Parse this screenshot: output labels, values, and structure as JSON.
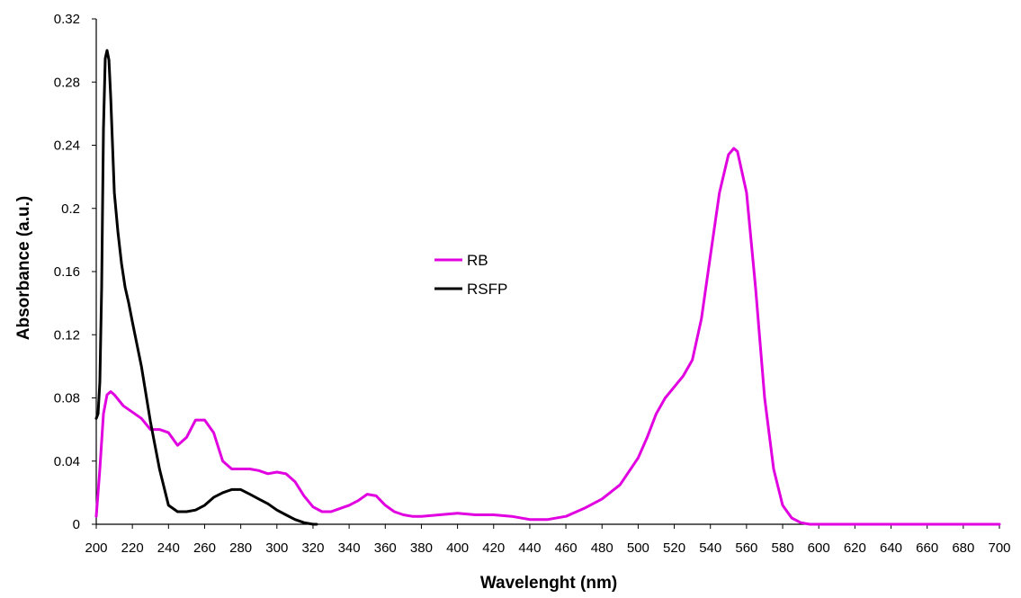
{
  "chart_data": {
    "type": "line",
    "xlabel": "Wavelenght (nm)",
    "ylabel": "Absorbance (a.u.)",
    "xlim": [
      200,
      700
    ],
    "ylim": [
      0,
      0.32
    ],
    "xticks": [
      "200",
      "220",
      "240",
      "260",
      "280",
      "300",
      "320",
      "340",
      "360",
      "380",
      "400",
      "420",
      "440",
      "460",
      "480",
      "500",
      "520",
      "540",
      "560",
      "580",
      "600",
      "620",
      "640",
      "660",
      "680",
      "700"
    ],
    "yticks": [
      "0",
      "0.04",
      "0.08",
      "0.12",
      "0.16",
      "0.2",
      "0.24",
      "0.28",
      "0.32"
    ],
    "grid": false,
    "legend_position": "center",
    "series": [
      {
        "name": "RB",
        "color": "#e000e0",
        "x": [
          200,
          202,
          204,
          206,
          208,
          210,
          215,
          220,
          225,
          230,
          235,
          240,
          245,
          250,
          255,
          260,
          265,
          270,
          275,
          280,
          285,
          290,
          295,
          300,
          305,
          310,
          315,
          320,
          325,
          330,
          335,
          340,
          345,
          350,
          355,
          360,
          365,
          370,
          375,
          380,
          390,
          400,
          410,
          420,
          430,
          440,
          450,
          460,
          470,
          480,
          490,
          500,
          505,
          510,
          515,
          520,
          525,
          530,
          535,
          540,
          545,
          550,
          553,
          555,
          560,
          565,
          570,
          575,
          580,
          585,
          590,
          595,
          600,
          605,
          610,
          650,
          700
        ],
        "y": [
          0.005,
          0.035,
          0.07,
          0.082,
          0.084,
          0.082,
          0.075,
          0.071,
          0.067,
          0.06,
          0.06,
          0.058,
          0.05,
          0.055,
          0.066,
          0.066,
          0.058,
          0.04,
          0.035,
          0.035,
          0.035,
          0.034,
          0.032,
          0.033,
          0.032,
          0.027,
          0.018,
          0.011,
          0.008,
          0.008,
          0.01,
          0.012,
          0.015,
          0.019,
          0.018,
          0.012,
          0.008,
          0.006,
          0.005,
          0.005,
          0.006,
          0.007,
          0.006,
          0.006,
          0.005,
          0.003,
          0.003,
          0.005,
          0.01,
          0.016,
          0.025,
          0.042,
          0.055,
          0.07,
          0.08,
          0.087,
          0.094,
          0.104,
          0.13,
          0.17,
          0.21,
          0.234,
          0.238,
          0.236,
          0.21,
          0.15,
          0.08,
          0.035,
          0.012,
          0.004,
          0.001,
          0,
          0,
          0,
          0,
          0,
          0
        ]
      },
      {
        "name": "RSFP",
        "color": "#000000",
        "x": [
          200,
          201,
          202,
          203,
          204,
          205,
          206,
          207,
          208,
          209,
          210,
          212,
          214,
          216,
          218,
          220,
          225,
          230,
          235,
          240,
          245,
          250,
          255,
          260,
          265,
          270,
          275,
          280,
          285,
          290,
          295,
          300,
          305,
          310,
          315,
          320,
          322
        ],
        "y": [
          0.067,
          0.07,
          0.09,
          0.15,
          0.25,
          0.295,
          0.3,
          0.294,
          0.27,
          0.24,
          0.21,
          0.185,
          0.165,
          0.15,
          0.14,
          0.128,
          0.1,
          0.065,
          0.035,
          0.012,
          0.008,
          0.008,
          0.009,
          0.012,
          0.017,
          0.02,
          0.022,
          0.022,
          0.019,
          0.016,
          0.013,
          0.009,
          0.006,
          0.003,
          0.001,
          0,
          0
        ]
      }
    ]
  }
}
